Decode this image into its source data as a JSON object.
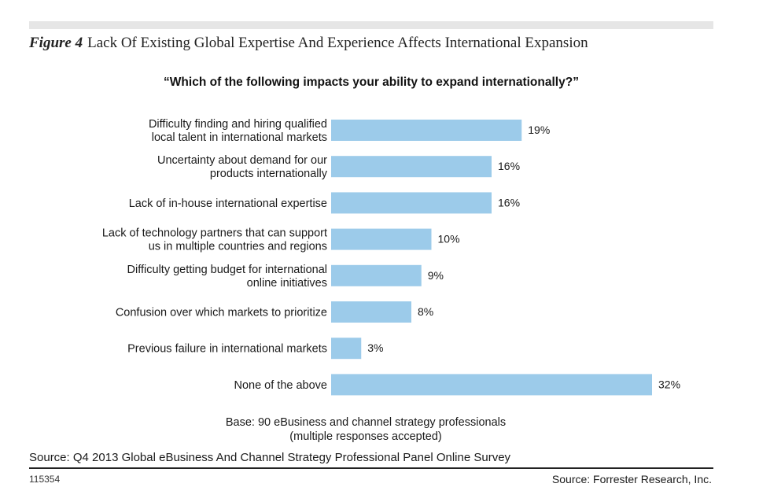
{
  "figure": {
    "number": "Figure 4",
    "title": "Lack Of Existing Global Expertise And Experience Affects International Expansion"
  },
  "question": "“Which of the following impacts your ability to expand internationally?”",
  "colors": {
    "bar": "#9ccbea",
    "band": "#e6e6e6"
  },
  "chart_data": {
    "type": "bar",
    "orientation": "horizontal",
    "categories": [
      [
        "Difficulty finding and hiring qualified",
        "local talent in international markets"
      ],
      [
        "Uncertainty about demand for our",
        "products internationally"
      ],
      [
        "Lack of in-house international expertise"
      ],
      [
        "Lack of technology partners that can support",
        "us in multiple countries and regions"
      ],
      [
        "Difficulty getting budget for international",
        "online initiatives"
      ],
      [
        "Confusion over which markets to prioritize"
      ],
      [
        "Previous failure in international markets"
      ],
      [
        "None of the above"
      ]
    ],
    "values": [
      19,
      16,
      16,
      10,
      9,
      8,
      3,
      32
    ],
    "value_labels": [
      "19%",
      "16%",
      "16%",
      "10%",
      "9%",
      "8%",
      "3%",
      "32%"
    ],
    "unit": "%",
    "grid": false,
    "legend": "none"
  },
  "base_note": {
    "line1": "Base: 90 eBusiness and channel strategy professionals",
    "line2": "(multiple responses accepted)"
  },
  "source": "Source: Q4 2013 Global eBusiness And Channel Strategy Professional Panel Online Survey",
  "figure_id": "115354",
  "credit": "Source: Forrester Research, Inc."
}
